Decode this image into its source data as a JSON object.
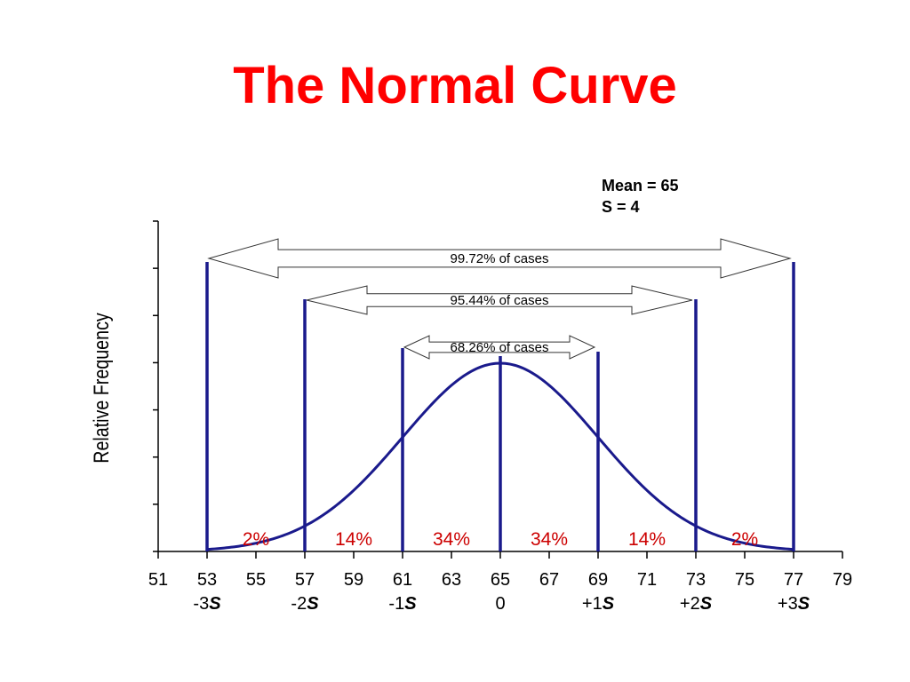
{
  "title": "The Normal Curve",
  "stats": {
    "mean_label": "Mean = 65",
    "s_label": "S = 4"
  },
  "colors": {
    "title": "#ff0000",
    "curve": "#1a1a8c",
    "lines": "#1a1a8c",
    "percent": "#cc0000",
    "axis": "#000000"
  },
  "chart_data": {
    "type": "line",
    "title": "The Normal Curve",
    "xlabel": "",
    "ylabel": "Relative Frequency",
    "mean": 65,
    "sd": 4,
    "xlim": [
      51,
      79
    ],
    "x_ticks": [
      51,
      53,
      55,
      57,
      59,
      61,
      63,
      65,
      67,
      69,
      71,
      73,
      75,
      77,
      79
    ],
    "sd_lines": [
      53,
      57,
      61,
      65,
      69,
      73,
      77
    ],
    "sd_labels": [
      {
        "x": 53,
        "prefix": "-3",
        "symbol": "S"
      },
      {
        "x": 57,
        "prefix": "-2",
        "symbol": "S"
      },
      {
        "x": 61,
        "prefix": "-1",
        "symbol": "S"
      },
      {
        "x": 65,
        "prefix": "0",
        "symbol": ""
      },
      {
        "x": 69,
        "prefix": "+1",
        "symbol": "S"
      },
      {
        "x": 73,
        "prefix": "+2",
        "symbol": "S"
      },
      {
        "x": 77,
        "prefix": "+3",
        "symbol": "S"
      }
    ],
    "region_percents": [
      {
        "from": 53,
        "to": 57,
        "label": "2%"
      },
      {
        "from": 57,
        "to": 61,
        "label": "14%"
      },
      {
        "from": 61,
        "to": 65,
        "label": "34%"
      },
      {
        "from": 65,
        "to": 69,
        "label": "34%"
      },
      {
        "from": 69,
        "to": 73,
        "label": "14%"
      },
      {
        "from": 73,
        "to": 77,
        "label": "2%"
      }
    ],
    "ranges": [
      {
        "from": 53,
        "to": 77,
        "label": "99.72% of cases"
      },
      {
        "from": 57,
        "to": 73,
        "label": "95.44% of cases"
      },
      {
        "from": 61,
        "to": 69,
        "label": "68.26% of cases"
      }
    ],
    "grid": false
  }
}
